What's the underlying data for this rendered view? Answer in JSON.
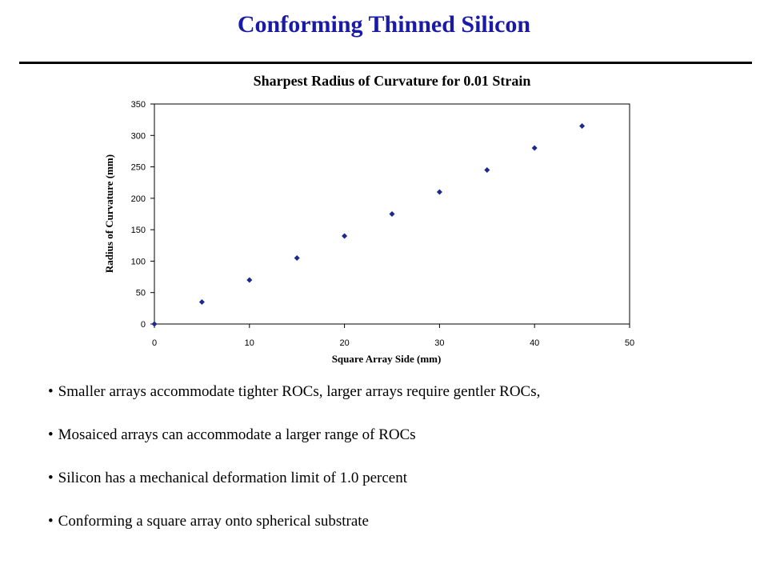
{
  "slide": {
    "title": "Conforming Thinned Silicon"
  },
  "chart_data": {
    "type": "scatter",
    "title": "Sharpest Radius of Curvature for 0.01 Strain",
    "xlabel": "Square Array Side (mm)",
    "ylabel": "Radius of Curvature (mm)",
    "xlim": [
      0,
      50
    ],
    "ylim": [
      0,
      350
    ],
    "xticks": [
      0,
      10,
      20,
      30,
      40,
      50
    ],
    "yticks": [
      0,
      50,
      100,
      150,
      200,
      250,
      300,
      350
    ],
    "grid": false,
    "marker_color": "#1a2a8c",
    "series": [
      {
        "x": [
          0,
          5,
          10,
          15,
          20,
          25,
          30,
          35,
          40,
          45
        ],
        "y": [
          0,
          35,
          70,
          105,
          140,
          175,
          210,
          245,
          280,
          315
        ]
      }
    ]
  },
  "bullets": [
    "Smaller arrays accommodate tighter ROCs, larger arrays require gentler ROCs,",
    "Mosaiced arrays can accommodate a larger range of ROCs",
    "Silicon has a mechanical deformation limit of 1.0 percent",
    "Conforming a square array onto spherical substrate"
  ]
}
